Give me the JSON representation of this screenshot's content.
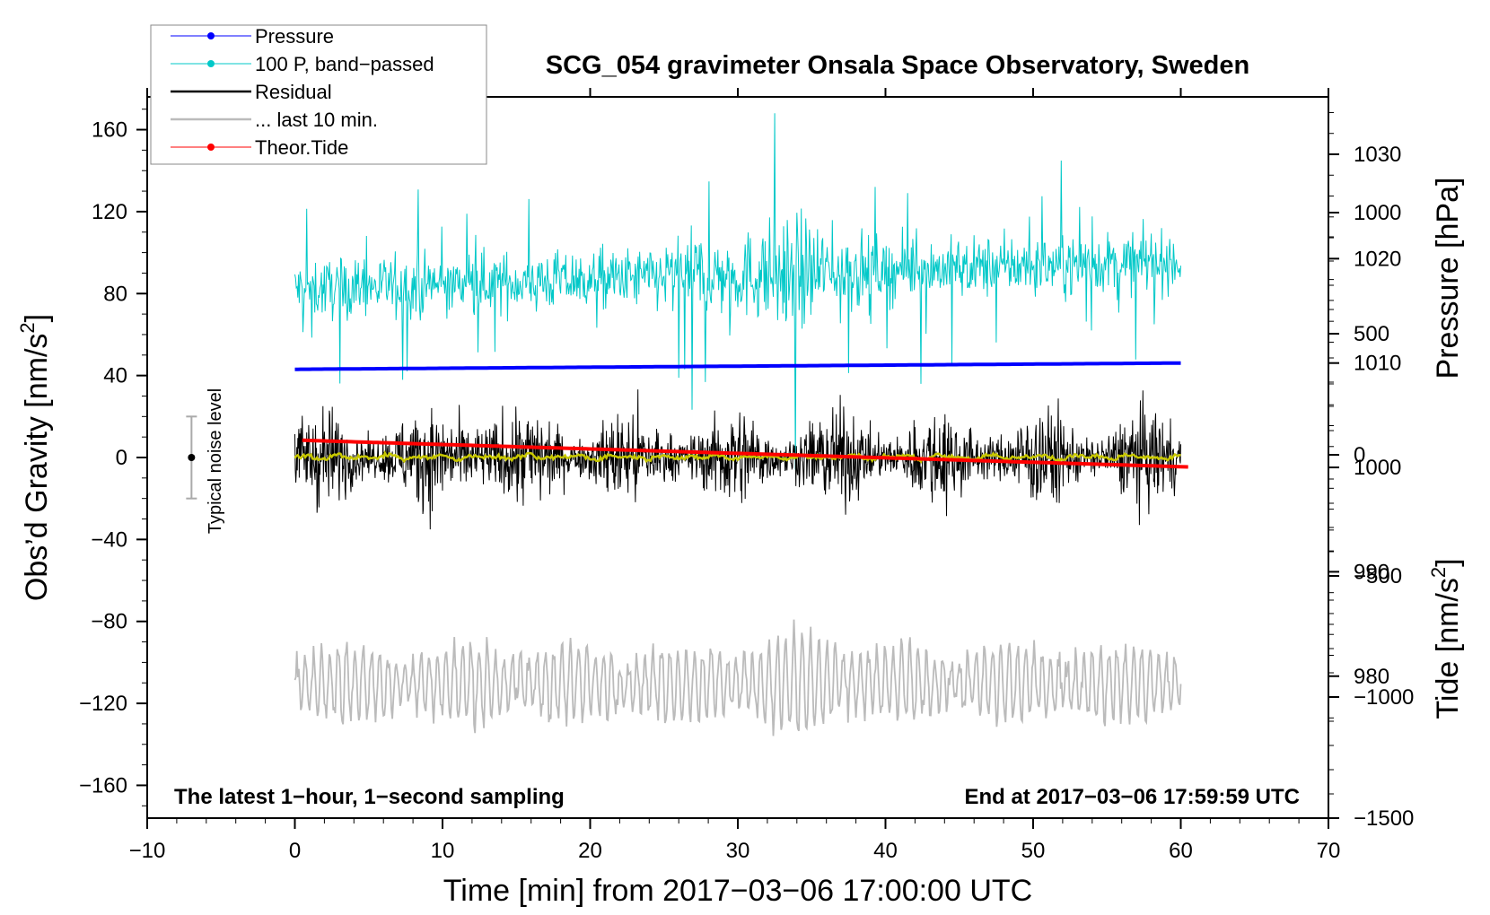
{
  "chart_data": {
    "type": "line",
    "title": "SCG_054 gravimeter Onsala Space Observatory, Sweden",
    "xlabel": "Time [min] from 2017−03−06 17:00:00 UTC",
    "ylabel_left": "Obs’d Gravity [nm/s",
    "ylabel_left_sup": "2",
    "ylabel_left_end": "]",
    "ylabel_right_pressure": "Pressure [hPa]",
    "ylabel_right_tide": "Tide [nm/s",
    "ylabel_right_tide_sup": "2",
    "ylabel_right_tide_end": "]",
    "xlim": [
      -10,
      70
    ],
    "ylim_left": [
      -176,
      176
    ],
    "pressure_range": [
      966.4,
      1035.5
    ],
    "tide_range": [
      -1500,
      1500
    ],
    "x_ticks": [
      "−10",
      "0",
      "10",
      "20",
      "30",
      "40",
      "50",
      "60",
      "70"
    ],
    "y_ticks_left": [
      "−160",
      "−120",
      "−80",
      "−40",
      "0",
      "40",
      "80",
      "120",
      "160"
    ],
    "y_ticks_pressure": [
      "980",
      "990",
      "1000",
      "1010",
      "1020",
      "1030"
    ],
    "y_ticks_tide": [
      "−1500",
      "−1000",
      "−500",
      "0",
      "500",
      "1000"
    ],
    "annotation_left": "The latest 1−hour, 1−second sampling",
    "annotation_right": "End at 2017−03−06 17:59:59 UTC",
    "noise_label": "Typical noise level",
    "noise_level": {
      "x": -7,
      "y": 0,
      "err": 20
    },
    "legend": [
      {
        "name": "Pressure",
        "color": "#0000ff",
        "marker": true
      },
      {
        "name": "100 P, band−passed",
        "color": "#00c8c8",
        "marker": true
      },
      {
        "name": "Residual",
        "color": "#000000",
        "marker": false
      },
      {
        "name": "... last 10 min.",
        "color": "#bbbbbb",
        "marker": false
      },
      {
        "name": "Theor.Tide",
        "color": "#ff0000",
        "marker": true
      }
    ],
    "series": [
      {
        "name": "Pressure",
        "unit": "hPa",
        "start": 1009.4,
        "end": 1010.0,
        "x_range": [
          0,
          60
        ]
      },
      {
        "name": "100 P, band−passed",
        "unit": "nm/s2",
        "center_start": 82,
        "center_end": 96,
        "amplitude": 12
      },
      {
        "name": "Residual",
        "unit": "nm/s2",
        "center": 0,
        "amplitude": 20
      },
      {
        "name": "... last 10 min.",
        "unit": "nm/s2",
        "center": -110,
        "amplitude": 15
      },
      {
        "name": "Theor.Tide",
        "unit": "nm/s2",
        "start": 60,
        "end": -50,
        "x_range": [
          0.5,
          60.5
        ]
      }
    ],
    "colors": {
      "residual_smooth": "#c8c800"
    }
  }
}
